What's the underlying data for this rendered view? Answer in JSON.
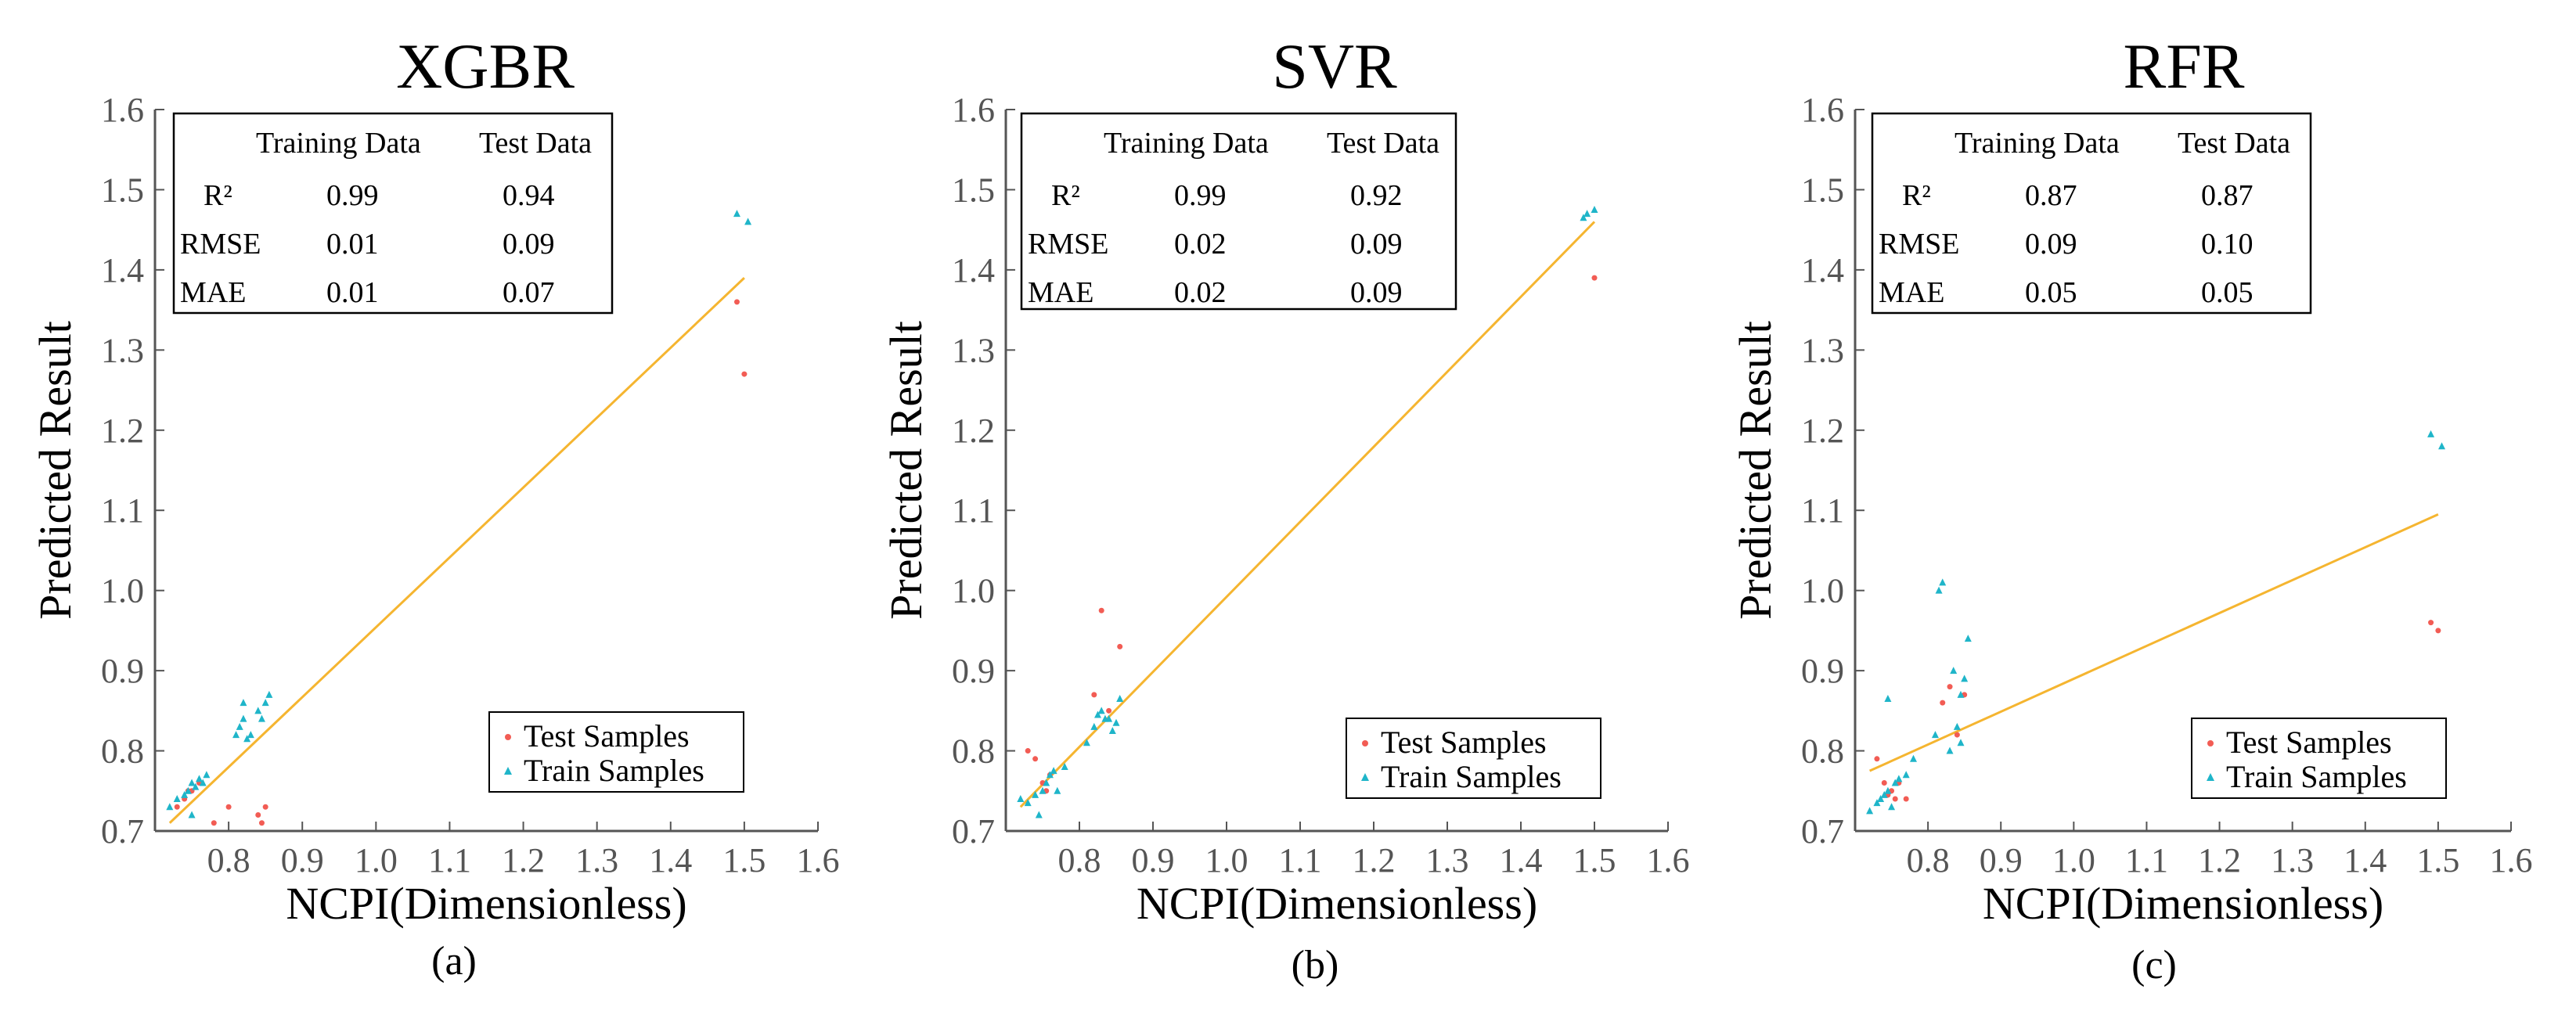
{
  "colors": {
    "test": "#f25c54",
    "train": "#1fb5c9",
    "fit_line": "#f5b530",
    "axis": "#555555"
  },
  "chart_data": [
    {
      "type": "scatter",
      "title": "XGBR",
      "panel_label": "(a)",
      "xlabel": "NCPI(Dimensionless)",
      "ylabel": "Predicted Result",
      "xlim": [
        0.7,
        1.6
      ],
      "ylim": [
        0.7,
        1.6
      ],
      "xticks": [
        "0.8",
        "0.9",
        "1.0",
        "1.1",
        "1.2",
        "1.3",
        "1.4",
        "1.5",
        "1.6"
      ],
      "yticks": [
        "0.7",
        "0.8",
        "0.9",
        "1.0",
        "1.1",
        "1.2",
        "1.3",
        "1.4",
        "1.5",
        "1.6"
      ],
      "metrics": {
        "headers": [
          "Training Data",
          "Test Data"
        ],
        "rows": [
          {
            "label": "R²",
            "train": "0.99",
            "test": "0.94"
          },
          {
            "label": "RMSE",
            "train": "0.01",
            "test": "0.09"
          },
          {
            "label": "MAE",
            "train": "0.01",
            "test": "0.07"
          }
        ]
      },
      "legend": [
        "Test Samples",
        "Train Samples"
      ],
      "fit_line": [
        [
          0.72,
          0.71
        ],
        [
          1.5,
          1.39
        ]
      ],
      "series": [
        {
          "name": "Test Samples",
          "points": [
            [
              0.73,
              0.73
            ],
            [
              0.74,
              0.74
            ],
            [
              0.745,
              0.75
            ],
            [
              0.75,
              0.75
            ],
            [
              0.76,
              0.76
            ],
            [
              0.78,
              0.71
            ],
            [
              0.8,
              0.73
            ],
            [
              0.84,
              0.72
            ],
            [
              0.85,
              0.73
            ],
            [
              0.845,
              0.71
            ],
            [
              1.49,
              1.36
            ],
            [
              1.5,
              1.27
            ]
          ]
        },
        {
          "name": "Train Samples",
          "points": [
            [
              0.72,
              0.73
            ],
            [
              0.73,
              0.74
            ],
            [
              0.74,
              0.745
            ],
            [
              0.745,
              0.75
            ],
            [
              0.75,
              0.76
            ],
            [
              0.755,
              0.755
            ],
            [
              0.76,
              0.765
            ],
            [
              0.765,
              0.76
            ],
            [
              0.77,
              0.77
            ],
            [
              0.75,
              0.72
            ],
            [
              0.81,
              0.82
            ],
            [
              0.815,
              0.83
            ],
            [
              0.82,
              0.84
            ],
            [
              0.82,
              0.86
            ],
            [
              0.83,
              0.82
            ],
            [
              0.84,
              0.85
            ],
            [
              0.845,
              0.84
            ],
            [
              0.85,
              0.86
            ],
            [
              0.855,
              0.87
            ],
            [
              0.825,
              0.815
            ],
            [
              1.49,
              1.47
            ],
            [
              1.505,
              1.46
            ]
          ]
        }
      ]
    },
    {
      "type": "scatter",
      "title": "SVR",
      "panel_label": "(b)",
      "xlabel": "NCPI(Dimensionless)",
      "ylabel": "Predicted Result",
      "xlim": [
        0.7,
        1.6
      ],
      "ylim": [
        0.7,
        1.6
      ],
      "xticks": [
        "0.8",
        "0.9",
        "1.0",
        "1.1",
        "1.2",
        "1.3",
        "1.4",
        "1.5",
        "1.6"
      ],
      "yticks": [
        "0.7",
        "0.8",
        "0.9",
        "1.0",
        "1.1",
        "1.2",
        "1.3",
        "1.4",
        "1.5",
        "1.6"
      ],
      "metrics": {
        "headers": [
          "Training Data",
          "Test Data"
        ],
        "rows": [
          {
            "label": "R²",
            "train": "0.99",
            "test": "0.92"
          },
          {
            "label": "RMSE",
            "train": "0.02",
            "test": "0.09"
          },
          {
            "label": "MAE",
            "train": "0.02",
            "test": "0.09"
          }
        ]
      },
      "legend": [
        "Test Samples",
        "Train Samples"
      ],
      "fit_line": [
        [
          0.72,
          0.73
        ],
        [
          1.5,
          1.46
        ]
      ],
      "series": [
        {
          "name": "Test Samples",
          "points": [
            [
              0.73,
              0.8
            ],
            [
              0.74,
              0.79
            ],
            [
              0.75,
              0.76
            ],
            [
              0.755,
              0.75
            ],
            [
              0.76,
              0.77
            ],
            [
              0.82,
              0.87
            ],
            [
              0.83,
              0.975
            ],
            [
              0.855,
              0.93
            ],
            [
              0.84,
              0.85
            ],
            [
              1.5,
              1.39
            ]
          ]
        },
        {
          "name": "Train Samples",
          "points": [
            [
              0.72,
              0.74
            ],
            [
              0.73,
              0.735
            ],
            [
              0.74,
              0.745
            ],
            [
              0.745,
              0.72
            ],
            [
              0.75,
              0.75
            ],
            [
              0.755,
              0.76
            ],
            [
              0.76,
              0.77
            ],
            [
              0.765,
              0.775
            ],
            [
              0.77,
              0.75
            ],
            [
              0.78,
              0.78
            ],
            [
              0.81,
              0.81
            ],
            [
              0.82,
              0.83
            ],
            [
              0.825,
              0.845
            ],
            [
              0.83,
              0.85
            ],
            [
              0.84,
              0.84
            ],
            [
              0.845,
              0.825
            ],
            [
              0.85,
              0.835
            ],
            [
              0.855,
              0.865
            ],
            [
              0.835,
              0.84
            ],
            [
              1.485,
              1.465
            ],
            [
              1.49,
              1.47
            ],
            [
              1.5,
              1.475
            ]
          ]
        }
      ]
    },
    {
      "type": "scatter",
      "title": "RFR",
      "panel_label": "(c)",
      "xlabel": "NCPI(Dimensionless)",
      "ylabel": "Predicted Result",
      "xlim": [
        0.7,
        1.6
      ],
      "ylim": [
        0.7,
        1.6
      ],
      "xticks": [
        "0.8",
        "0.9",
        "1.0",
        "1.1",
        "1.2",
        "1.3",
        "1.4",
        "1.5",
        "1.6"
      ],
      "yticks": [
        "0.7",
        "0.8",
        "0.9",
        "1.0",
        "1.1",
        "1.2",
        "1.3",
        "1.4",
        "1.5",
        "1.6"
      ],
      "metrics": {
        "headers": [
          "Training Data",
          "Test Data"
        ],
        "rows": [
          {
            "label": "R²",
            "train": "0.87",
            "test": "0.87"
          },
          {
            "label": "RMSE",
            "train": "0.09",
            "test": "0.10"
          },
          {
            "label": "MAE",
            "train": "0.05",
            "test": "0.05"
          }
        ]
      },
      "legend": [
        "Test Samples",
        "Train Samples"
      ],
      "fit_line": [
        [
          0.72,
          0.775
        ],
        [
          1.5,
          1.095
        ]
      ],
      "series": [
        {
          "name": "Test Samples",
          "points": [
            [
              0.73,
              0.79
            ],
            [
              0.74,
              0.76
            ],
            [
              0.745,
              0.745
            ],
            [
              0.75,
              0.75
            ],
            [
              0.755,
              0.74
            ],
            [
              0.76,
              0.76
            ],
            [
              0.77,
              0.74
            ],
            [
              0.82,
              0.86
            ],
            [
              0.83,
              0.88
            ],
            [
              0.84,
              0.82
            ],
            [
              0.85,
              0.87
            ],
            [
              1.49,
              0.96
            ],
            [
              1.5,
              0.95
            ]
          ]
        },
        {
          "name": "Train Samples",
          "points": [
            [
              0.72,
              0.725
            ],
            [
              0.73,
              0.735
            ],
            [
              0.735,
              0.74
            ],
            [
              0.74,
              0.745
            ],
            [
              0.745,
              0.75
            ],
            [
              0.75,
              0.73
            ],
            [
              0.755,
              0.76
            ],
            [
              0.76,
              0.765
            ],
            [
              0.77,
              0.77
            ],
            [
              0.745,
              0.865
            ],
            [
              0.78,
              0.79
            ],
            [
              0.81,
              0.82
            ],
            [
              0.815,
              1.0
            ],
            [
              0.82,
              1.01
            ],
            [
              0.83,
              0.8
            ],
            [
              0.835,
              0.9
            ],
            [
              0.84,
              0.83
            ],
            [
              0.845,
              0.87
            ],
            [
              0.85,
              0.89
            ],
            [
              0.855,
              0.94
            ],
            [
              0.845,
              0.81
            ],
            [
              1.49,
              1.195
            ],
            [
              1.505,
              1.18
            ]
          ]
        }
      ]
    }
  ]
}
